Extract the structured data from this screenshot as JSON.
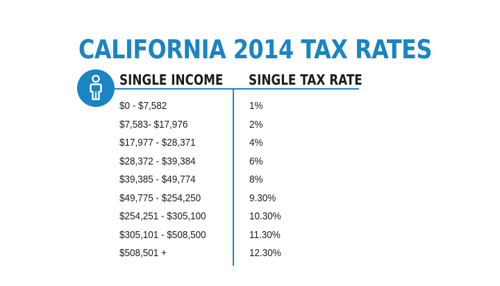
{
  "title": "CALIFORNIA 2014 TAX RATES",
  "icon": "person-icon",
  "colors": {
    "accent": "#1a84c4",
    "text": "#1c1c1c"
  },
  "table": {
    "headers": {
      "income": "SINGLE INCOME",
      "rate": "SINGLE TAX RATE"
    },
    "rows": [
      {
        "income": "$0 - $7,582",
        "rate": "1%"
      },
      {
        "income": "$7,583- $17,976",
        "rate": "2%"
      },
      {
        "income": "$17,977 - $28,371",
        "rate": "4%"
      },
      {
        "income": "$28,372 - $39,384",
        "rate": "6%"
      },
      {
        "income": "$39,385 - $49,774",
        "rate": "8%"
      },
      {
        "income": "$49,775 - $254,250",
        "rate": "9.30%"
      },
      {
        "income": "$254,251 - $305,100",
        "rate": "10.30%"
      },
      {
        "income": "$305,101 - $508,500",
        "rate": "11.30%"
      },
      {
        "income": "$508,501 +",
        "rate": "12.30%"
      }
    ]
  }
}
